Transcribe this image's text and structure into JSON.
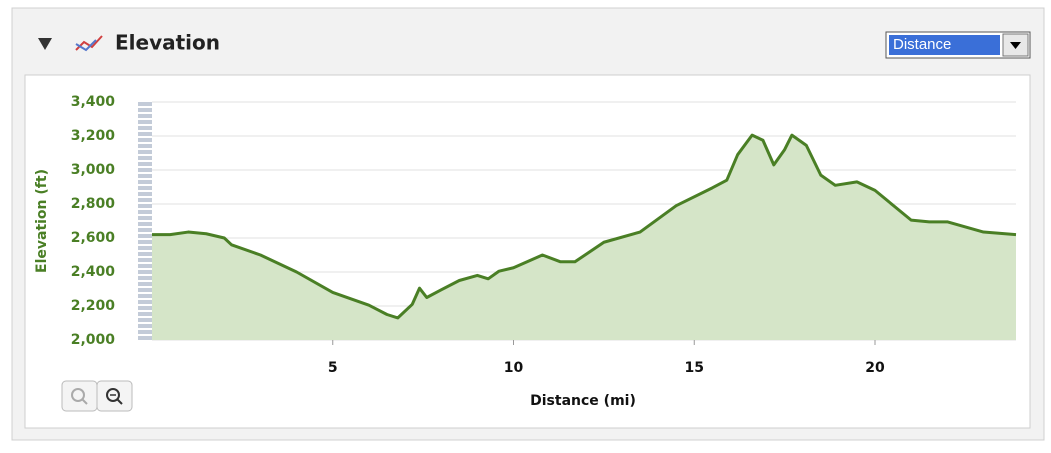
{
  "header": {
    "title": "Elevation"
  },
  "dropdown": {
    "selected": "Distance"
  },
  "chart_data": {
    "type": "area",
    "xlabel": "Distance (mi)",
    "ylabel": "Elevation (ft)",
    "x": [
      0,
      0.5,
      1,
      1.5,
      2,
      2.2,
      3,
      4,
      5,
      6,
      6.5,
      6.8,
      7.2,
      7.4,
      7.6,
      8,
      8.5,
      9,
      9.3,
      9.6,
      10,
      10.8,
      11.3,
      11.7,
      12.5,
      13.5,
      14.5,
      15.5,
      15.9,
      16.2,
      16.6,
      16.9,
      17.2,
      17.5,
      17.7,
      18.1,
      18.5,
      18.9,
      19.5,
      20,
      21,
      21.5,
      22,
      23,
      23.9
    ],
    "series": [
      {
        "color": "#4a7f25",
        "fill": "#d5e5c8",
        "values": [
          2620,
          2620,
          2635,
          2625,
          2600,
          2560,
          2500,
          2400,
          2280,
          2205,
          2150,
          2130,
          2210,
          2305,
          2250,
          2295,
          2350,
          2380,
          2360,
          2405,
          2425,
          2500,
          2460,
          2460,
          2575,
          2635,
          2790,
          2895,
          2940,
          3090,
          3205,
          3175,
          3030,
          3120,
          3205,
          3145,
          2970,
          2910,
          2930,
          2880,
          2705,
          2695,
          2695,
          2635,
          2620
        ]
      }
    ],
    "xlim": [
      0,
      23.9
    ],
    "ylim": [
      2000,
      3400
    ],
    "xticks": [
      5,
      10,
      15,
      20
    ],
    "yticks": [
      {
        "value": 2000,
        "label": "2,000"
      },
      {
        "value": 2200,
        "label": "2,200"
      },
      {
        "value": 2400,
        "label": "2,400"
      },
      {
        "value": 2600,
        "label": "2,600"
      },
      {
        "value": 2800,
        "label": "2,800"
      },
      {
        "value": 3000,
        "label": "3,000"
      },
      {
        "value": 3200,
        "label": "3,200"
      },
      {
        "value": 3400,
        "label": "3,400"
      }
    ],
    "grid": true
  }
}
